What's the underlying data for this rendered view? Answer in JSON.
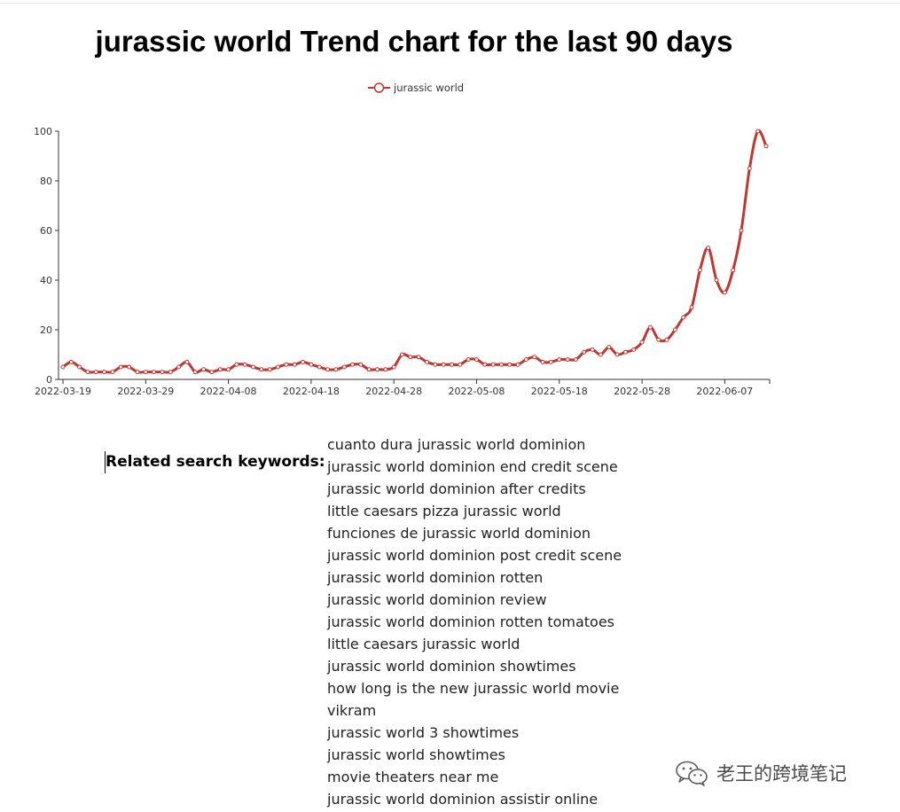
{
  "title": "jurassic world Trend chart for the last 90 days",
  "chart_data": {
    "type": "line",
    "x": [
      "2022-03-19",
      "2022-03-20",
      "2022-03-21",
      "2022-03-22",
      "2022-03-23",
      "2022-03-24",
      "2022-03-25",
      "2022-03-26",
      "2022-03-27",
      "2022-03-28",
      "2022-03-29",
      "2022-03-30",
      "2022-03-31",
      "2022-04-01",
      "2022-04-02",
      "2022-04-03",
      "2022-04-04",
      "2022-04-05",
      "2022-04-06",
      "2022-04-07",
      "2022-04-08",
      "2022-04-09",
      "2022-04-10",
      "2022-04-11",
      "2022-04-12",
      "2022-04-13",
      "2022-04-14",
      "2022-04-15",
      "2022-04-16",
      "2022-04-17",
      "2022-04-18",
      "2022-04-19",
      "2022-04-20",
      "2022-04-21",
      "2022-04-22",
      "2022-04-23",
      "2022-04-24",
      "2022-04-25",
      "2022-04-26",
      "2022-04-27",
      "2022-04-28",
      "2022-04-29",
      "2022-04-30",
      "2022-05-01",
      "2022-05-02",
      "2022-05-03",
      "2022-05-04",
      "2022-05-05",
      "2022-05-06",
      "2022-05-07",
      "2022-05-08",
      "2022-05-09",
      "2022-05-10",
      "2022-05-11",
      "2022-05-12",
      "2022-05-13",
      "2022-05-14",
      "2022-05-15",
      "2022-05-16",
      "2022-05-17",
      "2022-05-18",
      "2022-05-19",
      "2022-05-20",
      "2022-05-21",
      "2022-05-22",
      "2022-05-23",
      "2022-05-24",
      "2022-05-25",
      "2022-05-26",
      "2022-05-27",
      "2022-05-28",
      "2022-05-29",
      "2022-05-30",
      "2022-05-31",
      "2022-06-01",
      "2022-06-02",
      "2022-06-03",
      "2022-06-04",
      "2022-06-05",
      "2022-06-06",
      "2022-06-07",
      "2022-06-08",
      "2022-06-09",
      "2022-06-10",
      "2022-06-11",
      "2022-06-12"
    ],
    "series": [
      {
        "name": "jurassic world",
        "values": [
          5,
          7,
          5,
          3,
          3,
          3,
          3,
          5,
          5,
          3,
          3,
          3,
          3,
          3,
          5,
          7,
          3,
          4,
          3,
          4,
          4,
          6,
          6,
          5,
          4,
          4,
          5,
          6,
          6,
          7,
          6,
          5,
          4,
          4,
          5,
          6,
          6,
          4,
          4,
          4,
          5,
          10,
          9,
          9,
          7,
          6,
          6,
          6,
          6,
          8,
          8,
          6,
          6,
          6,
          6,
          6,
          8,
          9,
          7,
          7,
          8,
          8,
          8,
          11,
          12,
          10,
          13,
          10,
          11,
          12,
          15,
          21,
          16,
          16,
          20,
          25,
          29,
          44,
          53,
          40,
          35,
          44,
          60,
          85,
          100,
          94
        ]
      }
    ],
    "x_tick_labels": [
      "2022-03-19",
      "2022-03-29",
      "2022-04-08",
      "2022-04-18",
      "2022-04-28",
      "2022-05-08",
      "2022-05-18",
      "2022-05-28",
      "2022-06-07"
    ],
    "y_ticks": [
      0,
      20,
      40,
      60,
      80,
      100
    ],
    "ylim": [
      0,
      100
    ],
    "xlabel": "",
    "ylabel": "",
    "legend_position": "top-center",
    "grid": false,
    "line_color": "#c23531"
  },
  "related": {
    "label": "Related search keywords:",
    "keywords": [
      "cuanto dura jurassic world dominion",
      "jurassic world dominion end credit scene",
      "jurassic world dominion after credits",
      "little caesars pizza jurassic world",
      "funciones de jurassic world dominion",
      "jurassic world dominion post credit scene",
      "jurassic world dominion rotten",
      "jurassic world dominion review",
      "jurassic world dominion rotten tomatoes",
      "little caesars jurassic world",
      "jurassic world dominion showtimes",
      "how long is the new jurassic world movie",
      "vikram",
      "jurassic world 3 showtimes",
      "jurassic world showtimes",
      "movie theaters near me",
      "jurassic world dominion assistir online"
    ]
  },
  "watermark": {
    "icon": "wechat-icon",
    "text": "老王的跨境笔记"
  }
}
